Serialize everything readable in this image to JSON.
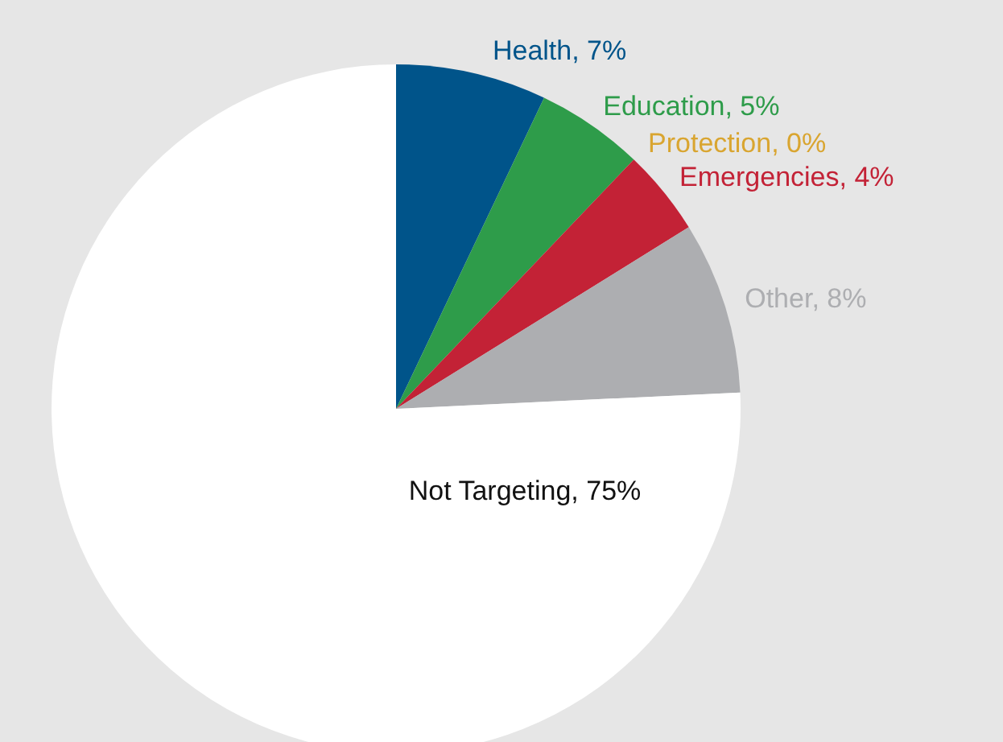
{
  "chart_data": {
    "type": "pie",
    "categories": [
      "Health, 7%",
      "Education, 5%",
      "Protection, 0%",
      "Emergencies, 4%",
      "Other, 8%",
      "Not Targeting, 75%"
    ],
    "values": [
      7,
      5,
      0,
      4,
      8,
      75
    ],
    "colors": [
      "#00548a",
      "#2e9c4a",
      "#d9a530",
      "#c32236",
      "#adaeb1",
      "#ffffff"
    ]
  }
}
